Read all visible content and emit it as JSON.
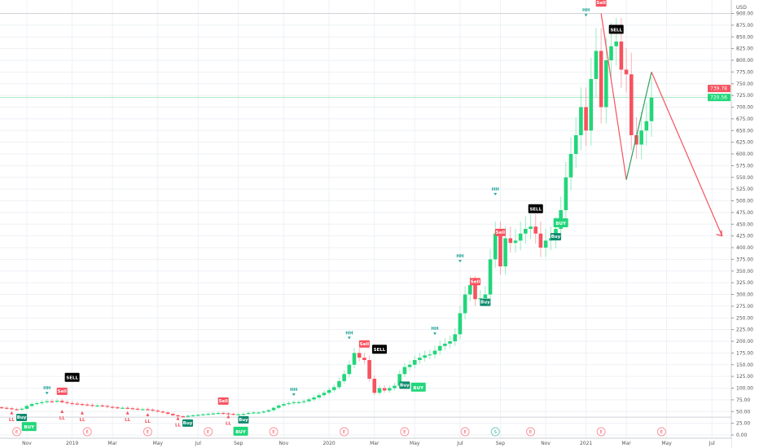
{
  "chart_data": {
    "type": "candlestick",
    "interval": "weekly",
    "currency_label": "USD",
    "ylim": [
      0,
      925
    ],
    "y_ticks": [
      "0.00",
      "25.00",
      "50.00",
      "75.00",
      "100.00",
      "125.00",
      "150.00",
      "175.00",
      "200.00",
      "225.00",
      "250.00",
      "275.00",
      "300.00",
      "325.00",
      "350.00",
      "375.00",
      "400.00",
      "425.00",
      "450.00",
      "475.00",
      "500.00",
      "525.00",
      "550.00",
      "575.00",
      "600.00",
      "625.00",
      "650.00",
      "675.00",
      "700.00",
      "725.00",
      "750.00",
      "775.00",
      "800.00",
      "825.00",
      "850.00",
      "875.00",
      "900.00"
    ],
    "x_ticks": [
      {
        "label": "Nov",
        "week": 5
      },
      {
        "label": "2019",
        "week": 14
      },
      {
        "label": "Mar",
        "week": 22
      },
      {
        "label": "May",
        "week": 31
      },
      {
        "label": "Jul",
        "week": 39
      },
      {
        "label": "Sep",
        "week": 47
      },
      {
        "label": "Nov",
        "week": 56
      },
      {
        "label": "2020",
        "week": 65
      },
      {
        "label": "Mar",
        "week": 74
      },
      {
        "label": "May",
        "week": 82
      },
      {
        "label": "Jul",
        "week": 91
      },
      {
        "label": "Sep",
        "week": 99
      },
      {
        "label": "Nov",
        "week": 108
      },
      {
        "label": "2021",
        "week": 116
      },
      {
        "label": "Mar",
        "week": 124
      },
      {
        "label": "May",
        "week": 132
      },
      {
        "label": "Jul",
        "week": 141
      }
    ],
    "closes": [
      58,
      57,
      55,
      54,
      56,
      62,
      66,
      68,
      70,
      72,
      71,
      73,
      70,
      68,
      67,
      66,
      65,
      64,
      62,
      63,
      62,
      60,
      59,
      58,
      58,
      57,
      56,
      55,
      55,
      54,
      52,
      50,
      48,
      45,
      42,
      40,
      39,
      41,
      42,
      43,
      44,
      45,
      46,
      47,
      46,
      45,
      44,
      44,
      45,
      47,
      48,
      48,
      50,
      53,
      58,
      63,
      66,
      68,
      70,
      70,
      72,
      76,
      80,
      85,
      90,
      96,
      102,
      115,
      130,
      150,
      175,
      165,
      160,
      120,
      90,
      100,
      95,
      100,
      105,
      130,
      145,
      150,
      160,
      165,
      170,
      172,
      180,
      190,
      195,
      200,
      215,
      260,
      300,
      320,
      290,
      292,
      300,
      375,
      430,
      360,
      420,
      410,
      415,
      430,
      440,
      445,
      430,
      400,
      415,
      420,
      440,
      480,
      550,
      600,
      640,
      700,
      650,
      760,
      820,
      700,
      800,
      830,
      840,
      780,
      770,
      640,
      620,
      650,
      670,
      720
    ],
    "price_labels": [
      {
        "text": "739.78",
        "price": 739.78,
        "color": "#f7525f"
      },
      {
        "text": "720.56",
        "price": 720.56,
        "color": "#22d67a"
      }
    ],
    "zigzag": [
      {
        "from": [
          119,
          900
        ],
        "to": [
          124,
          545
        ],
        "color": "#f7525f"
      },
      {
        "from": [
          124,
          545
        ],
        "to": [
          129,
          775
        ],
        "color": "#2e9e5e"
      },
      {
        "from": [
          129,
          775
        ],
        "to": [
          143,
          425
        ],
        "color": "#f7525f",
        "arrow": true
      }
    ],
    "markers": [
      {
        "text": "Buy",
        "week": 3,
        "price": 33,
        "kind": "buy"
      },
      {
        "text": "BUY",
        "week": 4,
        "price": 12,
        "kind": "BUY"
      },
      {
        "text": "HH",
        "week": 9,
        "price": 97,
        "kind": "hh"
      },
      {
        "text": "Sell",
        "week": 12,
        "price": 89,
        "kind": "sell"
      },
      {
        "text": "SELL",
        "week": 14,
        "price": 117,
        "kind": "SELL"
      },
      {
        "text": "LL",
        "week": 2,
        "price": 30,
        "kind": "ll"
      },
      {
        "text": "LL",
        "week": 12,
        "price": 33,
        "kind": "ll"
      },
      {
        "text": "LL",
        "week": 16,
        "price": 30,
        "kind": "ll"
      },
      {
        "text": "LL",
        "week": 25,
        "price": 30,
        "kind": "ll"
      },
      {
        "text": "LL",
        "week": 29,
        "price": 26,
        "kind": "ll"
      },
      {
        "text": "LL",
        "week": 35,
        "price": 18,
        "kind": "ll"
      },
      {
        "text": "LL",
        "week": 45,
        "price": 22,
        "kind": "ll"
      },
      {
        "text": "Buy",
        "week": 35,
        "price": 21,
        "kind": "buy"
      },
      {
        "text": "BUY",
        "week": 38,
        "price": 2,
        "kind": "BUY"
      },
      {
        "text": "Sell",
        "week": 44,
        "price": 68,
        "kind": "sell"
      },
      {
        "text": "Buy",
        "week": 48,
        "price": 28,
        "kind": "buy"
      },
      {
        "text": "HH",
        "week": 58,
        "price": 94,
        "kind": "hh"
      },
      {
        "text": "HH",
        "week": 69,
        "price": 215,
        "kind": "hh"
      },
      {
        "text": "Sell",
        "week": 72,
        "price": 190,
        "kind": "sell"
      },
      {
        "text": "SELL",
        "week": 75,
        "price": 177,
        "kind": "SELL"
      },
      {
        "text": "Buy",
        "week": 80,
        "price": 102,
        "kind": "buy"
      },
      {
        "text": "BUY",
        "week": 82,
        "price": 96,
        "kind": "BUY"
      },
      {
        "text": "HH",
        "week": 86,
        "price": 224,
        "kind": "hh"
      },
      {
        "text": "HH",
        "week": 91,
        "price": 379,
        "kind": "hh"
      },
      {
        "text": "Sell",
        "week": 94,
        "price": 323,
        "kind": "sell"
      },
      {
        "text": "Buy",
        "week": 96,
        "price": 279,
        "kind": "buy"
      },
      {
        "text": "HH",
        "week": 98,
        "price": 522,
        "kind": "hh"
      },
      {
        "text": "Sell",
        "week": 99,
        "price": 428,
        "kind": "sell"
      },
      {
        "text": "SELL",
        "week": 106,
        "price": 477,
        "kind": "SELL"
      },
      {
        "text": "Buy",
        "week": 110,
        "price": 419,
        "kind": "buy"
      },
      {
        "text": "BUY",
        "week": 111,
        "price": 447,
        "kind": "BUY"
      },
      {
        "text": "HH",
        "week": 116,
        "price": 904,
        "kind": "hh"
      },
      {
        "text": "Sell",
        "week": 119,
        "price": 918,
        "kind": "sell"
      },
      {
        "text": "SELL",
        "week": 122,
        "price": 860,
        "kind": "SELL"
      }
    ],
    "events": [
      {
        "text": "E",
        "week": 3
      },
      {
        "text": "E",
        "week": 17
      },
      {
        "text": "E",
        "week": 29
      },
      {
        "text": "E",
        "week": 41
      },
      {
        "text": "E",
        "week": 54
      },
      {
        "text": "E",
        "week": 68
      },
      {
        "text": "E",
        "week": 80
      },
      {
        "text": "E",
        "week": 92
      },
      {
        "text": "S",
        "week": 98
      },
      {
        "text": "E",
        "week": 105
      },
      {
        "text": "E",
        "week": 119
      },
      {
        "text": "E",
        "week": 131
      }
    ],
    "colors": {
      "up": "#22d67a",
      "down": "#f7525f",
      "buy": "#0e8a6e",
      "BUY": "#22d67a",
      "sell": "#f7525f",
      "hh": "#26a69a",
      "ll": "#f7525f"
    },
    "grid": true
  }
}
